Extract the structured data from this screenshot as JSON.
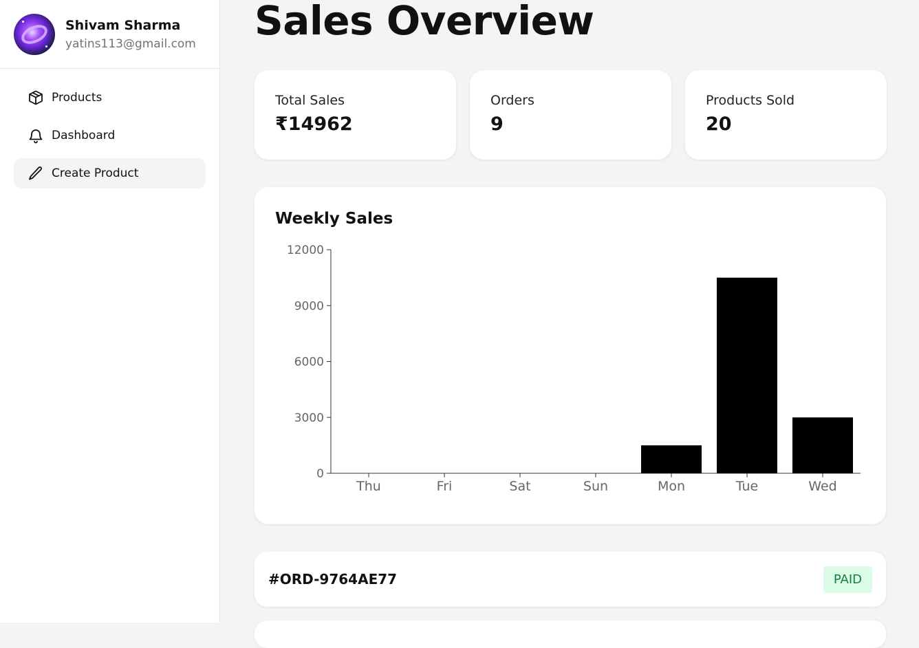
{
  "user": {
    "name": "Shivam Sharma",
    "email": "yatins113@gmail.com"
  },
  "nav": [
    {
      "label": "Products",
      "icon": "box-icon"
    },
    {
      "label": "Dashboard",
      "icon": "bell-icon"
    },
    {
      "label": "Create Product",
      "icon": "pencil-icon",
      "active": true
    }
  ],
  "page": {
    "title": "Sales Overview"
  },
  "stats": [
    {
      "label": "Total Sales",
      "value": "₹14962"
    },
    {
      "label": "Orders",
      "value": "9"
    },
    {
      "label": "Products Sold",
      "value": "20"
    }
  ],
  "chart_data": {
    "type": "bar",
    "title": "Weekly Sales",
    "categories": [
      "Thu",
      "Fri",
      "Sat",
      "Sun",
      "Mon",
      "Tue",
      "Wed"
    ],
    "values": [
      0,
      0,
      0,
      0,
      1500,
      10500,
      3000
    ],
    "ylim": [
      0,
      12000
    ],
    "yticks": [
      0,
      3000,
      6000,
      9000,
      12000
    ],
    "bar_color": "#000000",
    "xlabel": "",
    "ylabel": ""
  },
  "orders": [
    {
      "id": "#ORD-9764AE77",
      "status": "PAID"
    }
  ],
  "colors": {
    "paid_bg": "#dcfce7",
    "paid_text": "#15803d"
  }
}
